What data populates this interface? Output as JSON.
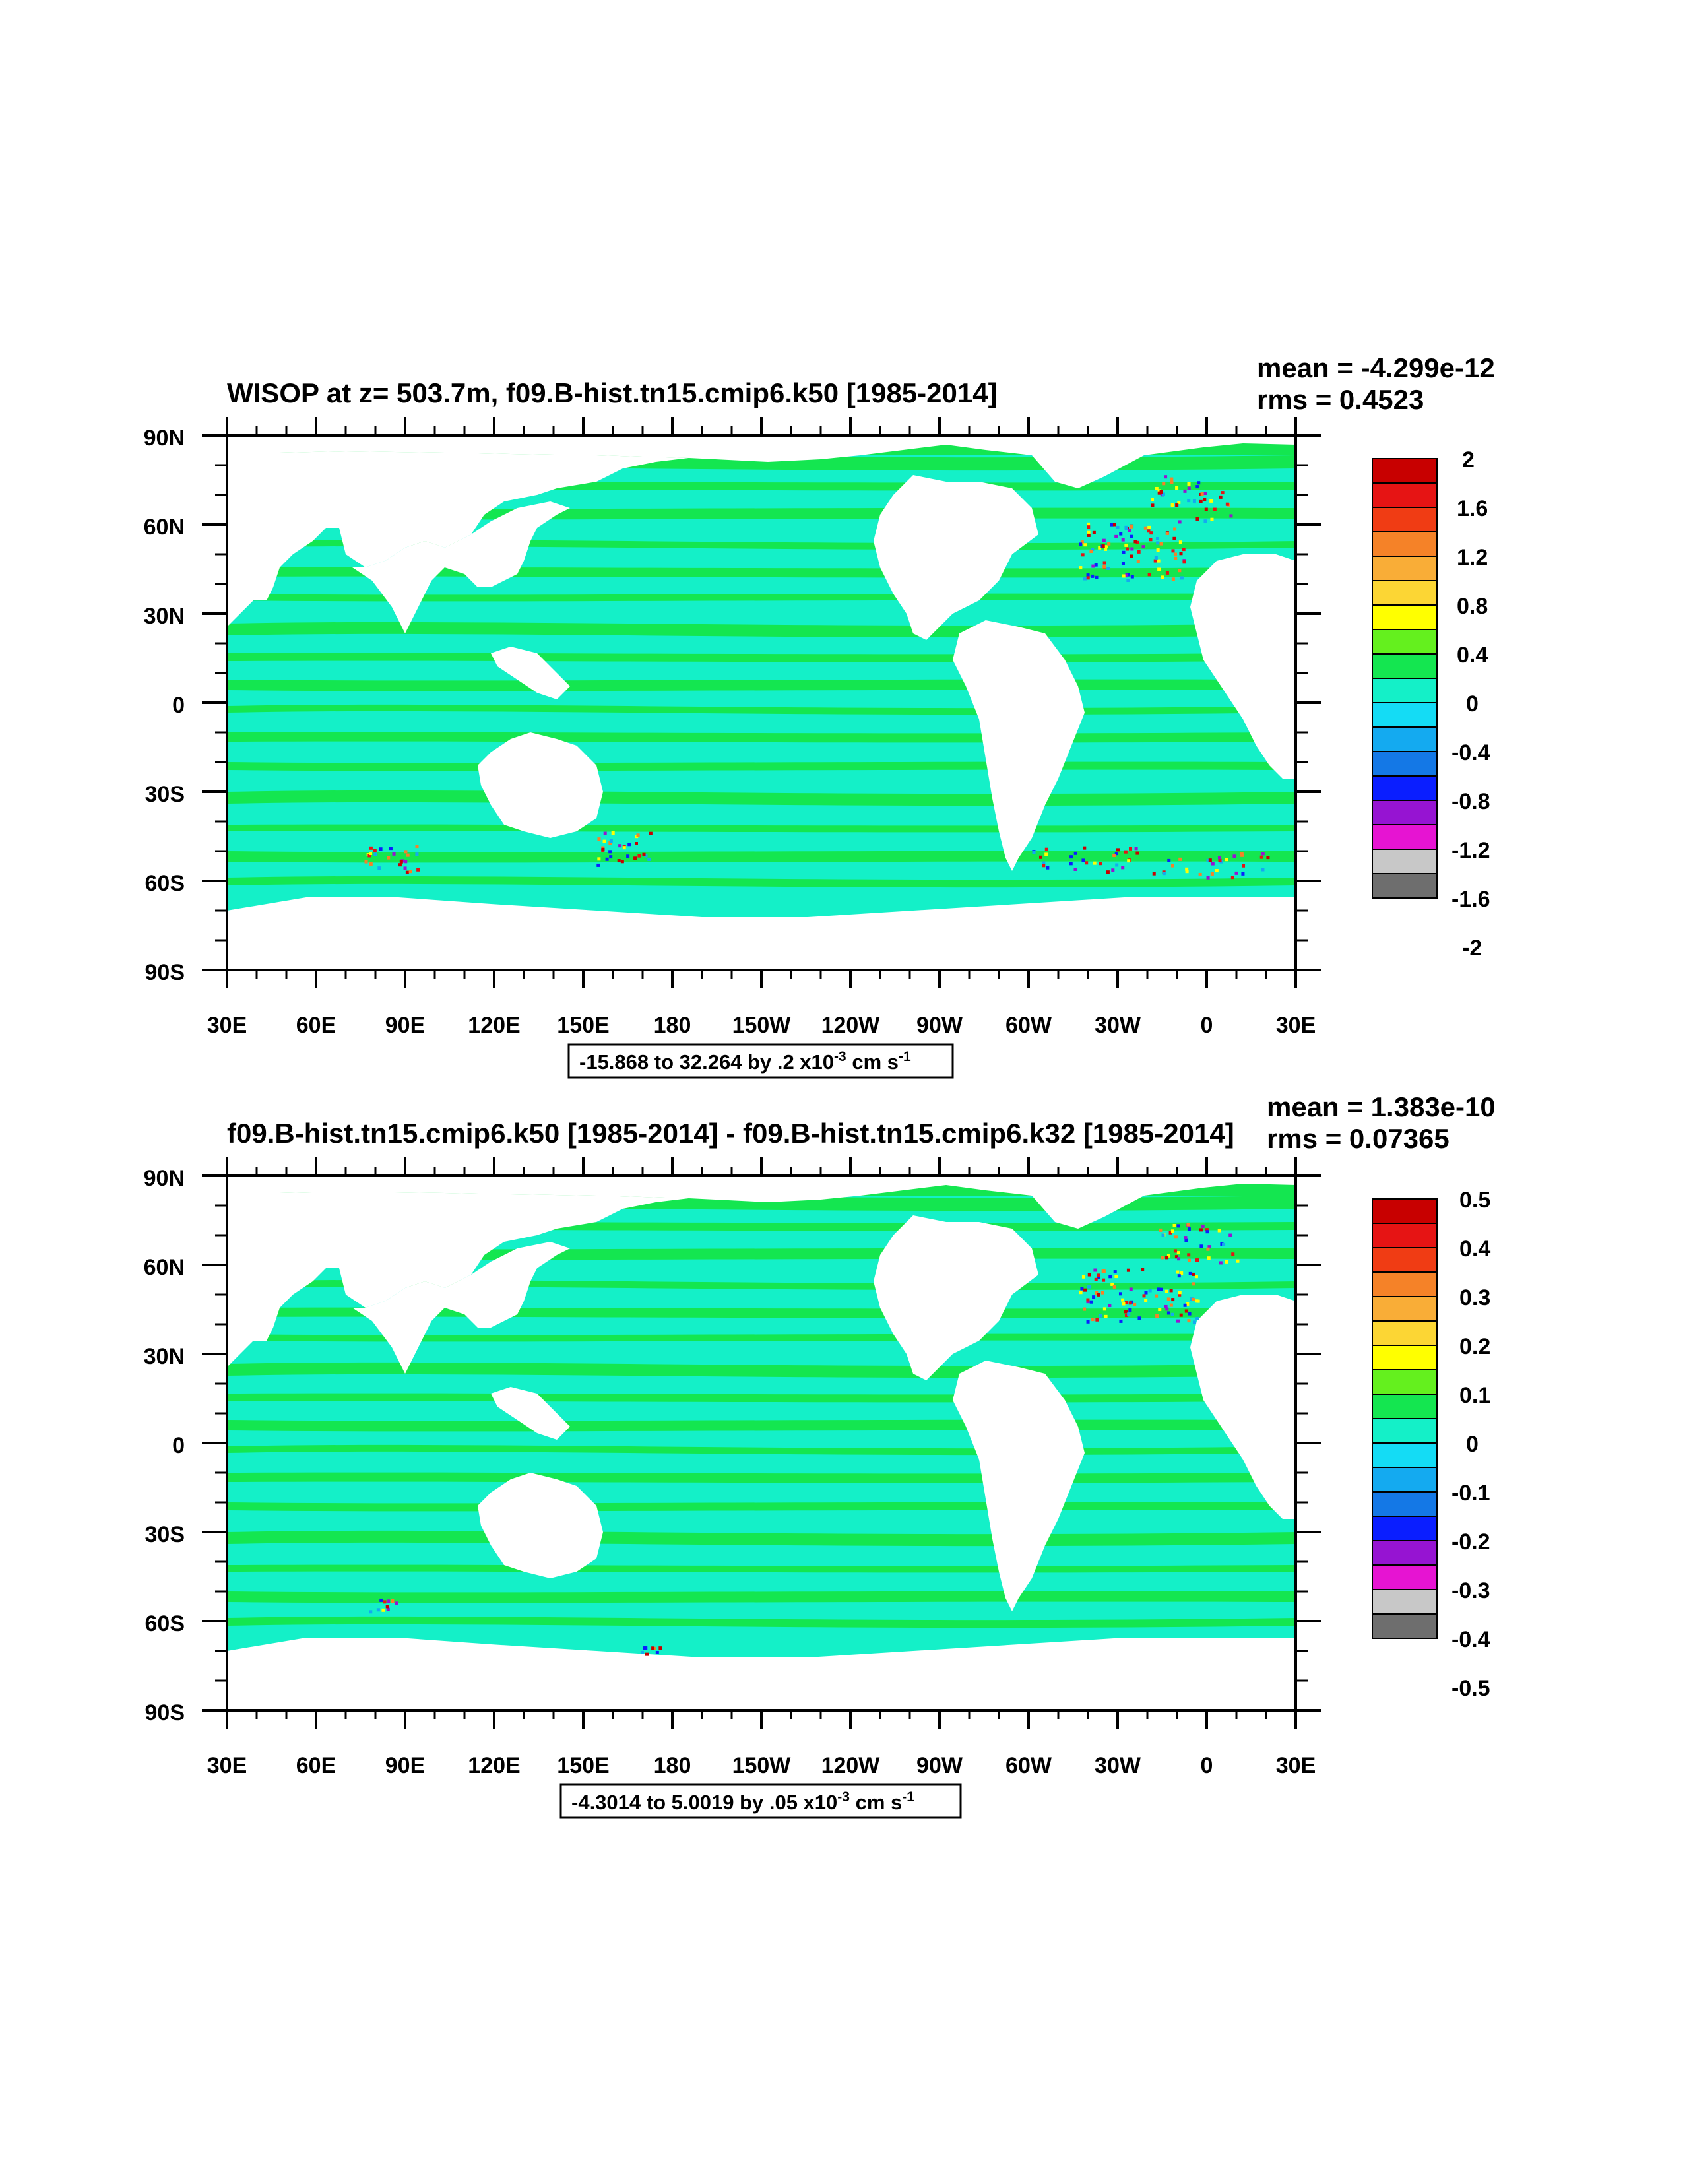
{
  "panels": [
    {
      "title": "WISOP at z= 503.7m, f09.B-hist.tn15.cmip6.k50 [1985-2014]",
      "mean_text": "mean = -4.299e-12",
      "rms_text": "rms = 0.4523",
      "contour_info": {
        "main": "-15.868 to 32.264 by .2 x10",
        "exp": "-3",
        "unit": " cm s",
        "unit_exp": "-1"
      },
      "lat_labels": [
        "90N",
        "60N",
        "30N",
        "0",
        "30S",
        "60S",
        "90S"
      ],
      "lon_labels": [
        "30E",
        "60E",
        "90E",
        "120E",
        "150E",
        "180",
        "150W",
        "120W",
        "90W",
        "60W",
        "30W",
        "0",
        "30E"
      ],
      "colorbar": {
        "labels": [
          "2",
          "1.6",
          "1.2",
          "0.8",
          "0.4",
          "0",
          "-0.4",
          "-0.8",
          "-1.2",
          "-1.6",
          "-2"
        ],
        "levels": [
          2,
          1.6,
          1.2,
          0.8,
          0.4,
          0,
          -0.4,
          -0.8,
          -1.2,
          -1.6,
          -2
        ]
      }
    },
    {
      "title": "f09.B-hist.tn15.cmip6.k50 [1985-2014] - f09.B-hist.tn15.cmip6.k32 [1985-2014]",
      "mean_text": "mean = 1.383e-10",
      "rms_text": "rms = 0.07365",
      "contour_info": {
        "main": "-4.3014 to 5.0019 by .05 x10",
        "exp": "-3",
        "unit": " cm s",
        "unit_exp": "-1"
      },
      "lat_labels": [
        "90N",
        "60N",
        "30N",
        "0",
        "30S",
        "60S",
        "90S"
      ],
      "lon_labels": [
        "30E",
        "60E",
        "90E",
        "120E",
        "150E",
        "180",
        "150W",
        "120W",
        "90W",
        "60W",
        "30W",
        "0",
        "30E"
      ],
      "colorbar": {
        "labels": [
          "0.5",
          "0.4",
          "0.3",
          "0.2",
          "0.1",
          "0",
          "-0.1",
          "-0.2",
          "-0.3",
          "-0.4",
          "-0.5"
        ],
        "levels": [
          0.5,
          0.4,
          0.3,
          0.2,
          0.1,
          0,
          -0.1,
          -0.2,
          -0.3,
          -0.4,
          -0.5
        ]
      }
    }
  ],
  "colorbar_colors": [
    "#c80000",
    "#e61414",
    "#f03c14",
    "#f58228",
    "#f9ad37",
    "#fcd634",
    "#ffff00",
    "#64f01e",
    "#14e650",
    "#14f0c8",
    "#14dcf5",
    "#14aaf0",
    "#1478e6",
    "#0a1eff",
    "#9614d2",
    "#e614d2",
    "#c8c8c8",
    "#6e6e6e"
  ],
  "map_colors": {
    "ocean_main": "#14f0c8",
    "ocean_alt": "#14e650",
    "land": "#ffffff"
  }
}
